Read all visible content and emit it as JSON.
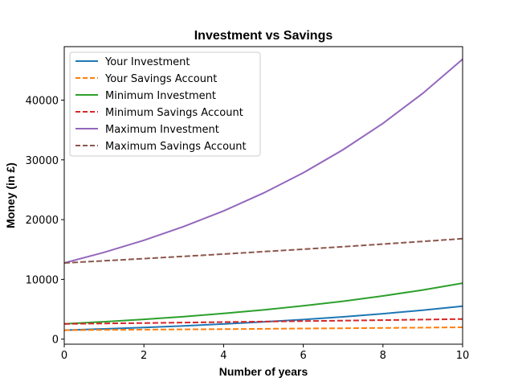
{
  "chart_data": {
    "type": "line",
    "title": "Investment vs Savings",
    "xlabel": "Number of years",
    "ylabel": "Money (in £)",
    "x": [
      0,
      1,
      2,
      3,
      4,
      5,
      6,
      7,
      8,
      9,
      10
    ],
    "xlim": [
      0,
      10
    ],
    "ylim": [
      -900,
      48800
    ],
    "xticks": [
      0,
      2,
      4,
      6,
      8,
      10
    ],
    "yticks": [
      0,
      10000,
      20000,
      30000,
      40000
    ],
    "grid": false,
    "legend_position": "upper left",
    "series": [
      {
        "name": "Your Investment",
        "color": "#1f77b4",
        "style": "solid",
        "values": [
          1500,
          1709,
          1946,
          2216,
          2525,
          2876,
          3275,
          3730,
          4249,
          4839,
          5512
        ]
      },
      {
        "name": "Your Savings Account",
        "color": "#ff7f0e",
        "style": "dashed",
        "values": [
          1500,
          1542,
          1585,
          1630,
          1675,
          1722,
          1770,
          1820,
          1871,
          1923,
          1977
        ]
      },
      {
        "name": "Minimum Investment",
        "color": "#2ca02c",
        "style": "solid",
        "values": [
          2550,
          2904,
          3308,
          3768,
          4292,
          4888,
          5568,
          6342,
          7223,
          8227,
          9371
        ]
      },
      {
        "name": "Minimum Savings Account",
        "color": "#d62728",
        "style": "dashed",
        "values": [
          2550,
          2621,
          2695,
          2770,
          2848,
          2928,
          3010,
          3094,
          3180,
          3270,
          3361
        ]
      },
      {
        "name": "Maximum Investment",
        "color": "#9467bd",
        "style": "solid",
        "values": [
          12750,
          14522,
          16541,
          18839,
          21458,
          24442,
          27838,
          31708,
          36116,
          41135,
          46854
        ]
      },
      {
        "name": "Maximum Savings Account",
        "color": "#8c564b",
        "style": "dashed",
        "values": [
          12750,
          13107,
          13474,
          13852,
          14239,
          14638,
          15048,
          15469,
          15902,
          16348,
          16806
        ]
      }
    ]
  }
}
